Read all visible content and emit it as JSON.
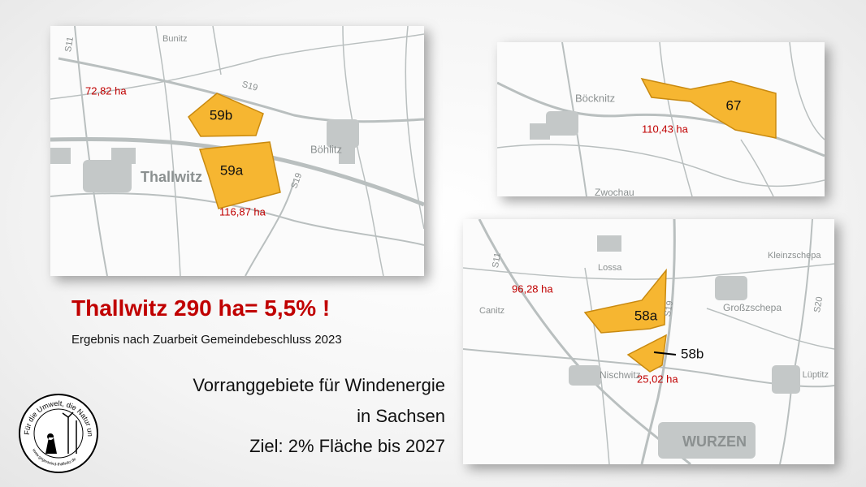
{
  "maps": [
    {
      "places": [
        "Bunitz",
        "S11",
        "S19",
        "Thallwitz",
        "Böhlitz",
        "S19"
      ],
      "areas": [
        {
          "id": "59b",
          "size": "72,82 ha"
        },
        {
          "id": "59a",
          "size": "116,87 ha"
        }
      ]
    },
    {
      "places": [
        "Böcknitz",
        "Zwochau"
      ],
      "areas": [
        {
          "id": "67",
          "size": "110,43 ha"
        }
      ]
    },
    {
      "places": [
        "Lossa",
        "S11",
        "Canitz",
        "S19",
        "Großzschepa",
        "Kleinzschepa",
        "S20",
        "Nischwitz",
        "Lüptitz",
        "WURZEN"
      ],
      "areas": [
        {
          "id": "58a",
          "size": "96,28 ha"
        },
        {
          "id": "58b",
          "size": "25,02 ha"
        }
      ]
    }
  ],
  "headline": "Thallwitz 290 ha= 5,5% !",
  "subtitle": "Ergebnis nach Zuarbeit Gemeindebeschluss 2023",
  "description": [
    "Vorranggebiete für Windenergie",
    "in Sachsen",
    "Ziel: 2% Fläche bis 2027"
  ],
  "logo": {
    "motto": "Für die Umwelt, die Natur und uns",
    "url": "www.gegenwind-thallwitz.de"
  }
}
